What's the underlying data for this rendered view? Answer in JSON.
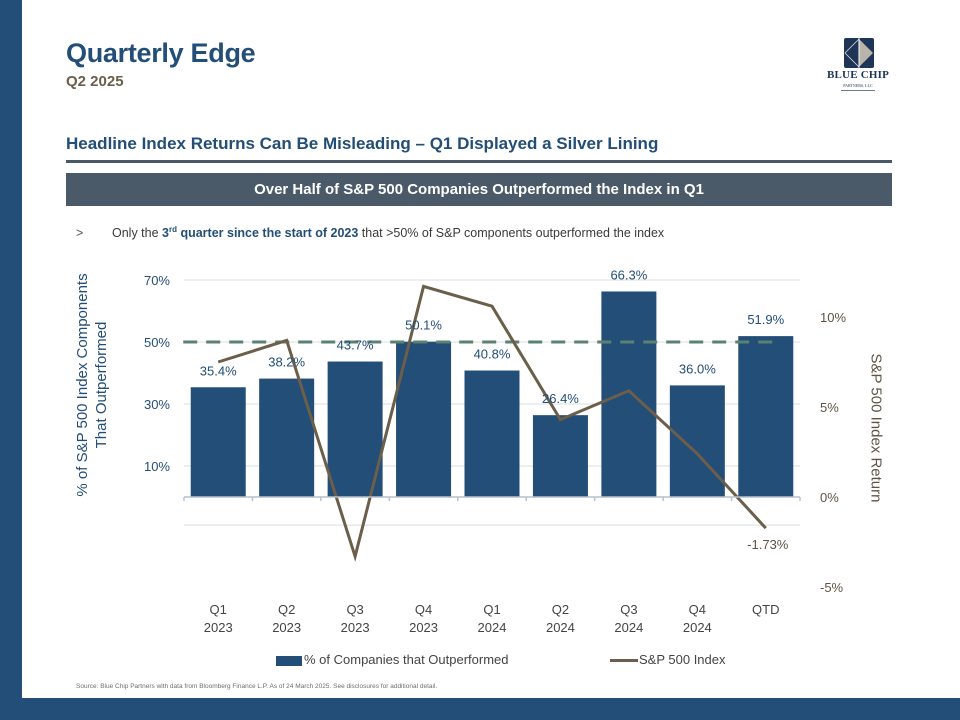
{
  "header": {
    "title": "Quarterly Edge",
    "subtitle": "Q2 2025",
    "logo": {
      "name": "BLUE CHIP",
      "sub": "PARTNERS, LLC",
      "icon": "diamond-square-logo-icon"
    }
  },
  "section_heading": "Headline Index Returns Can Be Misleading – Q1 Displayed a Silver Lining",
  "banner": "Over Half of S&P 500 Companies Outperformed the Index in Q1",
  "bullet": {
    "marker": ">",
    "prefix": "Only the ",
    "bold_num": "3",
    "bold_sup": "rd",
    "bold_rest": " quarter since the start of 2023",
    "suffix": " that >50% of S&P components outperformed the index"
  },
  "chart_data": {
    "type": "bar",
    "title": "Over Half of S&P 500 Companies Outperformed the Index in Q1",
    "categories": [
      "Q1 2023",
      "Q2 2023",
      "Q3 2023",
      "Q4 2023",
      "Q1 2024",
      "Q2 2024",
      "Q3 2024",
      "Q4 2024",
      "QTD"
    ],
    "category_lines": [
      [
        "Q1",
        "2023"
      ],
      [
        "Q2",
        "2023"
      ],
      [
        "Q3",
        "2023"
      ],
      [
        "Q4",
        "2023"
      ],
      [
        "Q1",
        "2024"
      ],
      [
        "Q2",
        "2024"
      ],
      [
        "Q3",
        "2024"
      ],
      [
        "Q4",
        "2024"
      ],
      [
        "QTD",
        ""
      ]
    ],
    "series": [
      {
        "name": "% of  Companies that Outperformed",
        "type": "bar",
        "axis": "left",
        "color": "#234e78",
        "values": [
          35.4,
          38.2,
          43.7,
          50.1,
          40.8,
          26.4,
          66.3,
          36.0,
          51.9
        ],
        "labels": [
          "35.4%",
          "38.2%",
          "43.7%",
          "50.1%",
          "40.8%",
          "26.4%",
          "66.3%",
          "36.0%",
          "51.9%"
        ]
      },
      {
        "name": "S&P 500 Index",
        "type": "line",
        "axis": "right",
        "color": "#6b5e4a",
        "values": [
          7.5,
          8.7,
          -3.3,
          11.7,
          10.6,
          4.3,
          5.9,
          2.4,
          -1.73
        ],
        "last_label": "-1.73%"
      }
    ],
    "reference_line": {
      "value": 50,
      "axis": "left",
      "style": "dashed",
      "color": "#5b8170"
    },
    "left_axis": {
      "label": "% of S&P 500 Index Components That Outperformed",
      "label_lines": [
        "% of S&P 500 Index Components",
        "That Outperformed"
      ],
      "ticks": [
        10,
        30,
        50,
        70
      ],
      "tick_labels": [
        "10%",
        "30%",
        "50%",
        "70%"
      ],
      "ylim": [
        -10,
        72
      ]
    },
    "right_axis": {
      "label": "S&P 500 Index Return",
      "ticks": [
        -5,
        0,
        5,
        10
      ],
      "tick_labels": [
        "-5%",
        "0%",
        "5%",
        "10%"
      ],
      "ylim": [
        -5,
        11
      ]
    },
    "grid": true,
    "legend": "bottom"
  },
  "source": "Source: Blue Chip Partners with data from Bloomberg Finance L.P. As of 24 March 2025. See disclosures for additional detail."
}
